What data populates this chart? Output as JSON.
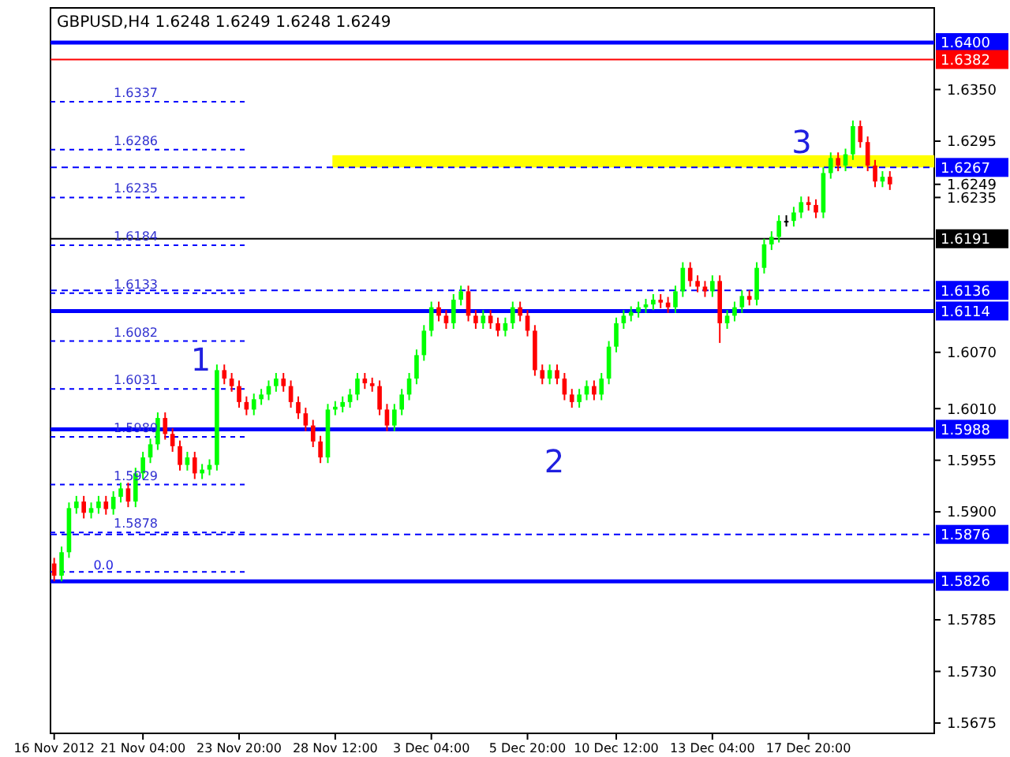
{
  "chart_data": {
    "type": "candlestick",
    "title": "GBPUSD,H4  1.6248 1.6249 1.6248 1.6249",
    "categories": [
      "16 Nov 2012",
      null,
      null,
      null,
      null,
      null,
      null,
      null,
      null,
      null,
      null,
      null,
      "21 Nov 04:00",
      null,
      null,
      null,
      null,
      null,
      null,
      null,
      null,
      null,
      null,
      null,
      null,
      "23 Nov 20:00",
      null,
      null,
      null,
      null,
      null,
      null,
      null,
      null,
      null,
      null,
      null,
      null,
      "28 Nov 12:00",
      null,
      null,
      null,
      null,
      null,
      null,
      null,
      null,
      null,
      null,
      null,
      null,
      "3 Dec 04:00",
      null,
      null,
      null,
      null,
      null,
      null,
      null,
      null,
      null,
      null,
      null,
      null,
      "5 Dec 20:00",
      null,
      null,
      null,
      null,
      null,
      null,
      null,
      null,
      null,
      null,
      null,
      "10 Dec 12:00",
      null,
      null,
      null,
      null,
      null,
      null,
      null,
      null,
      null,
      null,
      null,
      null,
      "13 Dec 04:00",
      null,
      null,
      null,
      null,
      null,
      null,
      null,
      null,
      null,
      null,
      null,
      null,
      "17 Dec 20:00",
      null,
      null,
      null,
      null,
      null,
      null,
      null,
      null,
      null,
      null,
      null
    ],
    "ohlc": [
      [
        1.5845,
        1.5851,
        1.5826,
        1.5832
      ],
      [
        1.5832,
        1.5863,
        1.5826,
        1.5857
      ],
      [
        1.5857,
        1.591,
        1.5851,
        1.5904
      ],
      [
        1.5904,
        1.5917,
        1.5898,
        1.5911
      ],
      [
        1.5911,
        1.5917,
        1.5893,
        1.5899
      ],
      [
        1.5899,
        1.591,
        1.5893,
        1.5904
      ],
      [
        1.5904,
        1.5917,
        1.5898,
        1.5911
      ],
      [
        1.5911,
        1.5917,
        1.5897,
        1.5903
      ],
      [
        1.5903,
        1.5922,
        1.5897,
        1.5916
      ],
      [
        1.5916,
        1.5931,
        1.591,
        1.5925
      ],
      [
        1.5925,
        1.5931,
        1.5905,
        1.5911
      ],
      [
        1.5911,
        1.5947,
        1.5905,
        1.5941
      ],
      [
        1.5941,
        1.5964,
        1.5935,
        1.5958
      ],
      [
        1.5958,
        1.5978,
        1.5952,
        1.5972
      ],
      [
        1.5972,
        1.6006,
        1.5966,
        1.6
      ],
      [
        1.6,
        1.6006,
        1.5977,
        1.5983
      ],
      [
        1.5983,
        1.5989,
        1.5964,
        1.597
      ],
      [
        1.597,
        1.5976,
        1.5944,
        1.595
      ],
      [
        1.595,
        1.5964,
        1.5944,
        1.5958
      ],
      [
        1.5958,
        1.5964,
        1.5935,
        1.5941
      ],
      [
        1.5941,
        1.5951,
        1.5935,
        1.5945
      ],
      [
        1.5945,
        1.5956,
        1.5939,
        1.595
      ],
      [
        1.595,
        1.6057,
        1.5944,
        1.6051
      ],
      [
        1.6051,
        1.6057,
        1.6036,
        1.6042
      ],
      [
        1.6042,
        1.6048,
        1.6028,
        1.6034
      ],
      [
        1.6034,
        1.604,
        1.6011,
        1.6017
      ],
      [
        1.6017,
        1.6023,
        1.6003,
        1.6009
      ],
      [
        1.6009,
        1.6026,
        1.6003,
        1.602
      ],
      [
        1.602,
        1.6031,
        1.6014,
        1.6025
      ],
      [
        1.6025,
        1.604,
        1.6019,
        1.6034
      ],
      [
        1.6034,
        1.6048,
        1.6028,
        1.6042
      ],
      [
        1.6042,
        1.6048,
        1.6028,
        1.6034
      ],
      [
        1.6034,
        1.604,
        1.6011,
        1.6017
      ],
      [
        1.6017,
        1.6023,
        1.5999,
        1.6005
      ],
      [
        1.6005,
        1.6011,
        1.5986,
        1.5992
      ],
      [
        1.5992,
        1.5998,
        1.5969,
        1.5975
      ],
      [
        1.5975,
        1.5981,
        1.5952,
        1.5958
      ],
      [
        1.5958,
        1.6015,
        1.5952,
        1.6009
      ],
      [
        1.6009,
        1.6018,
        1.6003,
        1.6012
      ],
      [
        1.6012,
        1.6023,
        1.6006,
        1.6017
      ],
      [
        1.6017,
        1.6031,
        1.6011,
        1.6025
      ],
      [
        1.6025,
        1.6048,
        1.6019,
        1.6042
      ],
      [
        1.6042,
        1.6048,
        1.6031,
        1.6037
      ],
      [
        1.6037,
        1.6043,
        1.6028,
        1.6034
      ],
      [
        1.6034,
        1.604,
        1.6003,
        1.6009
      ],
      [
        1.6009,
        1.6015,
        1.5986,
        1.5992
      ],
      [
        1.5992,
        1.6015,
        1.5986,
        1.6009
      ],
      [
        1.6009,
        1.6031,
        1.6003,
        1.6025
      ],
      [
        1.6025,
        1.6048,
        1.6019,
        1.6042
      ],
      [
        1.6042,
        1.6073,
        1.6036,
        1.6067
      ],
      [
        1.6067,
        1.6099,
        1.6061,
        1.6093
      ],
      [
        1.6093,
        1.6124,
        1.6087,
        1.6118
      ],
      [
        1.6118,
        1.6124,
        1.6103,
        1.6109
      ],
      [
        1.6109,
        1.6115,
        1.6095,
        1.6101
      ],
      [
        1.6101,
        1.6132,
        1.6095,
        1.6126
      ],
      [
        1.6126,
        1.6141,
        1.612,
        1.6135
      ],
      [
        1.6135,
        1.6141,
        1.6103,
        1.6109
      ],
      [
        1.6109,
        1.6115,
        1.6095,
        1.6101
      ],
      [
        1.6101,
        1.6115,
        1.6095,
        1.6109
      ],
      [
        1.6109,
        1.6115,
        1.6095,
        1.6101
      ],
      [
        1.6101,
        1.6107,
        1.6087,
        1.6093
      ],
      [
        1.6093,
        1.6107,
        1.6087,
        1.6101
      ],
      [
        1.6101,
        1.6124,
        1.6095,
        1.6118
      ],
      [
        1.6118,
        1.6124,
        1.6103,
        1.6109
      ],
      [
        1.6109,
        1.6115,
        1.6087,
        1.6093
      ],
      [
        1.6093,
        1.6099,
        1.6045,
        1.6051
      ],
      [
        1.6051,
        1.6057,
        1.6036,
        1.6042
      ],
      [
        1.6042,
        1.6057,
        1.6036,
        1.6051
      ],
      [
        1.6051,
        1.6057,
        1.6036,
        1.6042
      ],
      [
        1.6042,
        1.6048,
        1.6019,
        1.6025
      ],
      [
        1.6025,
        1.6031,
        1.6011,
        1.6017
      ],
      [
        1.6017,
        1.6031,
        1.6011,
        1.6025
      ],
      [
        1.6025,
        1.604,
        1.6019,
        1.6034
      ],
      [
        1.6034,
        1.604,
        1.6019,
        1.6025
      ],
      [
        1.6025,
        1.6048,
        1.6019,
        1.6042
      ],
      [
        1.6042,
        1.6082,
        1.6036,
        1.6076
      ],
      [
        1.6076,
        1.6107,
        1.607,
        1.6101
      ],
      [
        1.6101,
        1.6115,
        1.6095,
        1.6109
      ],
      [
        1.6109,
        1.6119,
        1.6103,
        1.6113
      ],
      [
        1.6113,
        1.6124,
        1.6107,
        1.6118
      ],
      [
        1.6118,
        1.6127,
        1.6112,
        1.6121
      ],
      [
        1.6121,
        1.6132,
        1.6115,
        1.6126
      ],
      [
        1.6126,
        1.6132,
        1.6117,
        1.6123
      ],
      [
        1.6123,
        1.6129,
        1.6112,
        1.6118
      ],
      [
        1.6118,
        1.6141,
        1.6112,
        1.6135
      ],
      [
        1.6135,
        1.6166,
        1.6129,
        1.616
      ],
      [
        1.616,
        1.6166,
        1.614,
        1.6146
      ],
      [
        1.6146,
        1.6152,
        1.6134,
        1.614
      ],
      [
        1.614,
        1.6146,
        1.6129,
        1.6135
      ],
      [
        1.6135,
        1.6152,
        1.6129,
        1.6146
      ],
      [
        1.6146,
        1.6152,
        1.608,
        1.6101
      ],
      [
        1.6101,
        1.6115,
        1.6095,
        1.6109
      ],
      [
        1.6109,
        1.6124,
        1.6103,
        1.6118
      ],
      [
        1.6118,
        1.6136,
        1.6112,
        1.613
      ],
      [
        1.613,
        1.6136,
        1.612,
        1.6126
      ],
      [
        1.6126,
        1.6166,
        1.612,
        1.616
      ],
      [
        1.616,
        1.6191,
        1.6154,
        1.6185
      ],
      [
        1.6185,
        1.6199,
        1.6179,
        1.6193
      ],
      [
        1.6193,
        1.6216,
        1.6187,
        1.621
      ],
      [
        1.621,
        1.6216,
        1.6204,
        1.621
      ],
      [
        1.621,
        1.6225,
        1.6204,
        1.6219
      ],
      [
        1.6219,
        1.6236,
        1.6213,
        1.623
      ],
      [
        1.623,
        1.6236,
        1.6221,
        1.6227
      ],
      [
        1.6227,
        1.6233,
        1.6213,
        1.6219
      ],
      [
        1.6219,
        1.6267,
        1.6213,
        1.6261
      ],
      [
        1.6261,
        1.6283,
        1.6255,
        1.6277
      ],
      [
        1.6277,
        1.6283,
        1.6263,
        1.6269
      ],
      [
        1.6269,
        1.6287,
        1.6263,
        1.6281
      ],
      [
        1.6281,
        1.6317,
        1.6275,
        1.6311
      ],
      [
        1.6311,
        1.6317,
        1.6288,
        1.6294
      ],
      [
        1.6294,
        1.63,
        1.6263,
        1.6269
      ],
      [
        1.6269,
        1.6275,
        1.6246,
        1.6252
      ],
      [
        1.6252,
        1.6263,
        1.6246,
        1.6257
      ],
      [
        1.6257,
        1.6263,
        1.6243,
        1.6249
      ]
    ],
    "colors": [
      "#ff0000",
      "#00ff00",
      "#00ff00",
      "#00ff00",
      "#ff0000",
      "#00ff00",
      "#00ff00",
      "#ff0000",
      "#00ff00",
      "#00ff00",
      "#ff0000",
      "#00ff00",
      "#00ff00",
      "#00ff00",
      "#00ff00",
      "#ff0000",
      "#ff0000",
      "#ff0000",
      "#00ff00",
      "#ff0000",
      "#00ff00",
      "#00ff00",
      "#00ff00",
      "#ff0000",
      "#ff0000",
      "#ff0000",
      "#ff0000",
      "#00ff00",
      "#00ff00",
      "#00ff00",
      "#00ff00",
      "#ff0000",
      "#ff0000",
      "#ff0000",
      "#ff0000",
      "#ff0000",
      "#ff0000",
      "#00ff00",
      "#00ff00",
      "#00ff00",
      "#00ff00",
      "#00ff00",
      "#ff0000",
      "#ff0000",
      "#ff0000",
      "#ff0000",
      "#00ff00",
      "#00ff00",
      "#00ff00",
      "#00ff00",
      "#00ff00",
      "#00ff00",
      "#ff0000",
      "#ff0000",
      "#00ff00",
      "#00ff00",
      "#ff0000",
      "#ff0000",
      "#00ff00",
      "#ff0000",
      "#ff0000",
      "#00ff00",
      "#00ff00",
      "#ff0000",
      "#ff0000",
      "#ff0000",
      "#ff0000",
      "#00ff00",
      "#ff0000",
      "#ff0000",
      "#ff0000",
      "#00ff00",
      "#00ff00",
      "#ff0000",
      "#00ff00",
      "#00ff00",
      "#00ff00",
      "#00ff00",
      "#00ff00",
      "#00ff00",
      "#00ff00",
      "#00ff00",
      "#ff0000",
      "#ff0000",
      "#00ff00",
      "#00ff00",
      "#ff0000",
      "#ff0000",
      "#ff0000",
      "#00ff00",
      "#ff0000",
      "#00ff00",
      "#00ff00",
      "#00ff00",
      "#ff0000",
      "#00ff00",
      "#00ff00",
      "#00ff00",
      "#00ff00",
      "#000000",
      "#00ff00",
      "#00ff00",
      "#ff0000",
      "#ff0000",
      "#00ff00",
      "#00ff00",
      "#ff0000",
      "#00ff00",
      "#00ff00",
      "#ff0000",
      "#ff0000",
      "#ff0000",
      "#00ff00",
      "#ff0000"
    ],
    "ylim": [
      1.5664,
      1.6437
    ],
    "yticks": [
      {
        "value": 1.635,
        "label": "1.6350"
      },
      {
        "value": 1.6295,
        "label": "1.6295"
      },
      {
        "value": 1.6235,
        "label": "1.6235"
      },
      {
        "value": 1.607,
        "label": "1.6070"
      },
      {
        "value": 1.601,
        "label": "1.6010"
      },
      {
        "value": 1.5955,
        "label": "1.5955"
      },
      {
        "value": 1.59,
        "label": "1.5900"
      },
      {
        "value": 1.5785,
        "label": "1.5785"
      },
      {
        "value": 1.573,
        "label": "1.5730"
      },
      {
        "value": 1.5675,
        "label": "1.5675"
      },
      {
        "value": 1.6249,
        "label": "1.6249"
      }
    ],
    "ref_lines": [
      {
        "axis": "y",
        "value": 1.64,
        "label": "1.6400",
        "color": "#0000ff",
        "line_style": "solid"
      },
      {
        "axis": "y",
        "value": 1.6382,
        "label": "1.6382",
        "color": "#ff0000",
        "line_style": "solid"
      },
      {
        "axis": "y",
        "value": 1.6267,
        "label": "1.6267",
        "color": "#0000ff",
        "line_style": "dashed"
      },
      {
        "axis": "y",
        "value": 1.6191,
        "label": "1.6191",
        "color": "#000000",
        "line_style": "solid"
      },
      {
        "axis": "y",
        "value": 1.6136,
        "label": "1.6136",
        "color": "#0000ff",
        "line_style": "dashed"
      },
      {
        "axis": "y",
        "value": 1.6114,
        "label": "1.6114",
        "color": "#0000ff",
        "line_style": "solid"
      },
      {
        "axis": "y",
        "value": 1.5988,
        "label": "1.5988",
        "color": "#0000ff",
        "line_style": "solid"
      },
      {
        "axis": "y",
        "value": 1.5876,
        "label": "1.5876",
        "color": "#0000ff",
        "line_style": "dashed"
      },
      {
        "axis": "y",
        "value": 1.5826,
        "label": "1.5826",
        "color": "#0000ff",
        "line_style": "solid"
      },
      {
        "axis": "y",
        "value": 1.6337,
        "label": "1.6337",
        "color": "#0000ff",
        "line_style": "dotted"
      },
      {
        "axis": "y",
        "value": 1.6286,
        "label": "1.6286",
        "color": "#0000ff",
        "line_style": "dotted"
      },
      {
        "axis": "y",
        "value": 1.6235,
        "label": "1.6235",
        "color": "#0000ff",
        "line_style": "dotted"
      },
      {
        "axis": "y",
        "value": 1.6184,
        "label": "1.6184",
        "color": "#0000ff",
        "line_style": "dotted"
      },
      {
        "axis": "y",
        "value": 1.6133,
        "label": "1.6133",
        "color": "#0000ff",
        "line_style": "dotted"
      },
      {
        "axis": "y",
        "value": 1.6082,
        "label": "1.6082",
        "color": "#0000ff",
        "line_style": "dotted"
      },
      {
        "axis": "y",
        "value": 1.6031,
        "label": "1.6031",
        "color": "#0000ff",
        "line_style": "dotted"
      },
      {
        "axis": "y",
        "value": 1.598,
        "label": "1.5980",
        "color": "#0000ff",
        "line_style": "dotted"
      },
      {
        "axis": "y",
        "value": 1.5929,
        "label": "1.5929",
        "color": "#0000ff",
        "line_style": "dotted"
      },
      {
        "axis": "y",
        "value": 1.5878,
        "label": "1.5878",
        "color": "#0000ff",
        "line_style": "dotted"
      },
      {
        "axis": "y",
        "value": 1.5836,
        "color": "#0000ff",
        "line_style": "dotted"
      }
    ],
    "bands": [
      {
        "axis": "y",
        "from": 1.6267,
        "to": 1.628,
        "color": "#ffff00"
      }
    ],
    "annotations": [
      "1",
      "2",
      "3",
      "0.0"
    ]
  }
}
